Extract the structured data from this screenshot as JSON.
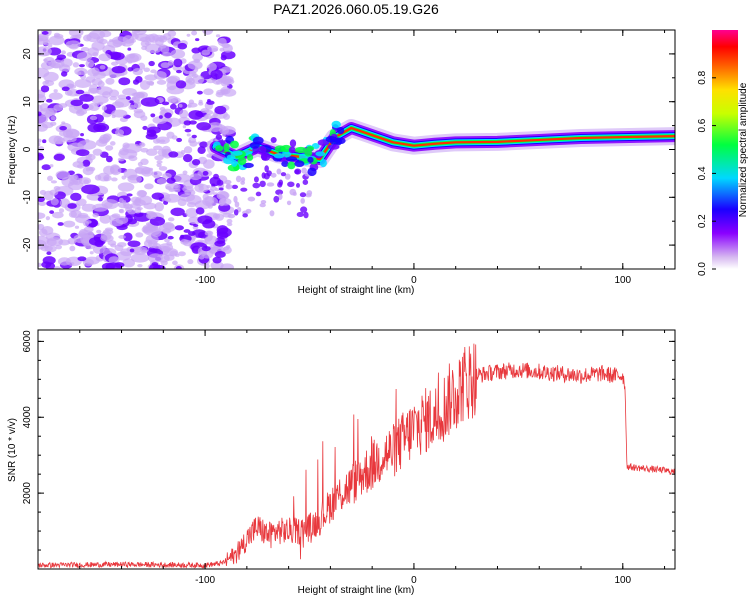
{
  "title": "PAZ1.2026.060.05.19.G26",
  "chart_data": [
    {
      "type": "heatmap",
      "title": "PAZ1.2026.060.05.19.G26",
      "xlabel": "Height of straight line (km)",
      "ylabel": "Frequency (Hz)",
      "xlim": [
        -180,
        125
      ],
      "ylim": [
        -25,
        25
      ],
      "xticks": [
        -100,
        0,
        100
      ],
      "xtick_labels": [
        "-100",
        "0",
        "100"
      ],
      "yticks": [
        -20,
        -10,
        0,
        10,
        20
      ],
      "ytick_labels": [
        "-20",
        "-10",
        "0",
        "10",
        "20"
      ],
      "colorbar": {
        "label": "Normalized spectral amplitude",
        "range": [
          0,
          1
        ],
        "ticks": [
          0.0,
          0.2,
          0.4,
          0.6,
          0.8
        ],
        "tick_labels": [
          "0.0",
          "0.2",
          "0.4",
          "0.6",
          "0.8"
        ]
      },
      "ridge": [
        {
          "x": -95,
          "y": 0.5
        },
        {
          "x": -85,
          "y": -1.5
        },
        {
          "x": -75,
          "y": 0.5
        },
        {
          "x": -65,
          "y": -1.0
        },
        {
          "x": -55,
          "y": -1.5
        },
        {
          "x": -45,
          "y": -2.0
        },
        {
          "x": -38,
          "y": 2.5
        },
        {
          "x": -30,
          "y": 4.5
        },
        {
          "x": -20,
          "y": 3.0
        },
        {
          "x": -10,
          "y": 1.5
        },
        {
          "x": 0,
          "y": 0.8
        },
        {
          "x": 10,
          "y": 1.2
        },
        {
          "x": 20,
          "y": 1.5
        },
        {
          "x": 40,
          "y": 1.6
        },
        {
          "x": 60,
          "y": 2.0
        },
        {
          "x": 80,
          "y": 2.4
        },
        {
          "x": 100,
          "y": 2.6
        },
        {
          "x": 125,
          "y": 2.8
        }
      ]
    },
    {
      "type": "line",
      "xlabel": "Height of straight line (km)",
      "ylabel": "SNR (10 * v/v)",
      "xlim": [
        -180,
        125
      ],
      "ylim": [
        0,
        6300
      ],
      "xticks": [
        -100,
        0,
        100
      ],
      "xtick_labels": [
        "-100",
        "0",
        "100"
      ],
      "yticks": [
        2000,
        4000,
        6000
      ],
      "ytick_labels": [
        "2000",
        "4000",
        "6000"
      ],
      "series": [
        {
          "name": "SNR",
          "color": "#e8383d",
          "x": [
            -180,
            -160,
            -140,
            -120,
            -100,
            -92,
            -85,
            -80,
            -75,
            -70,
            -65,
            -60,
            -55,
            -50,
            -45,
            -40,
            -35,
            -30,
            -25,
            -20,
            -15,
            -10,
            -5,
            0,
            5,
            10,
            15,
            20,
            25,
            30,
            40,
            50,
            60,
            70,
            80,
            90,
            95,
            100,
            101,
            102,
            110,
            120,
            125
          ],
          "y": [
            100,
            110,
            120,
            110,
            100,
            150,
            400,
            800,
            1100,
            900,
            1000,
            1000,
            1000,
            1100,
            1300,
            1700,
            2000,
            2200,
            2500,
            2700,
            3000,
            3100,
            3400,
            3700,
            3900,
            4000,
            4300,
            4700,
            4950,
            5100,
            5200,
            5250,
            5200,
            5150,
            5100,
            5150,
            5100,
            5100,
            4900,
            2700,
            2650,
            2600,
            2550
          ]
        }
      ]
    }
  ],
  "colors": {
    "snr_line": "#e8383d",
    "axis": "#000000",
    "speckle_purple": "#6a00ff",
    "speckle_light": "#c9a6f5"
  }
}
